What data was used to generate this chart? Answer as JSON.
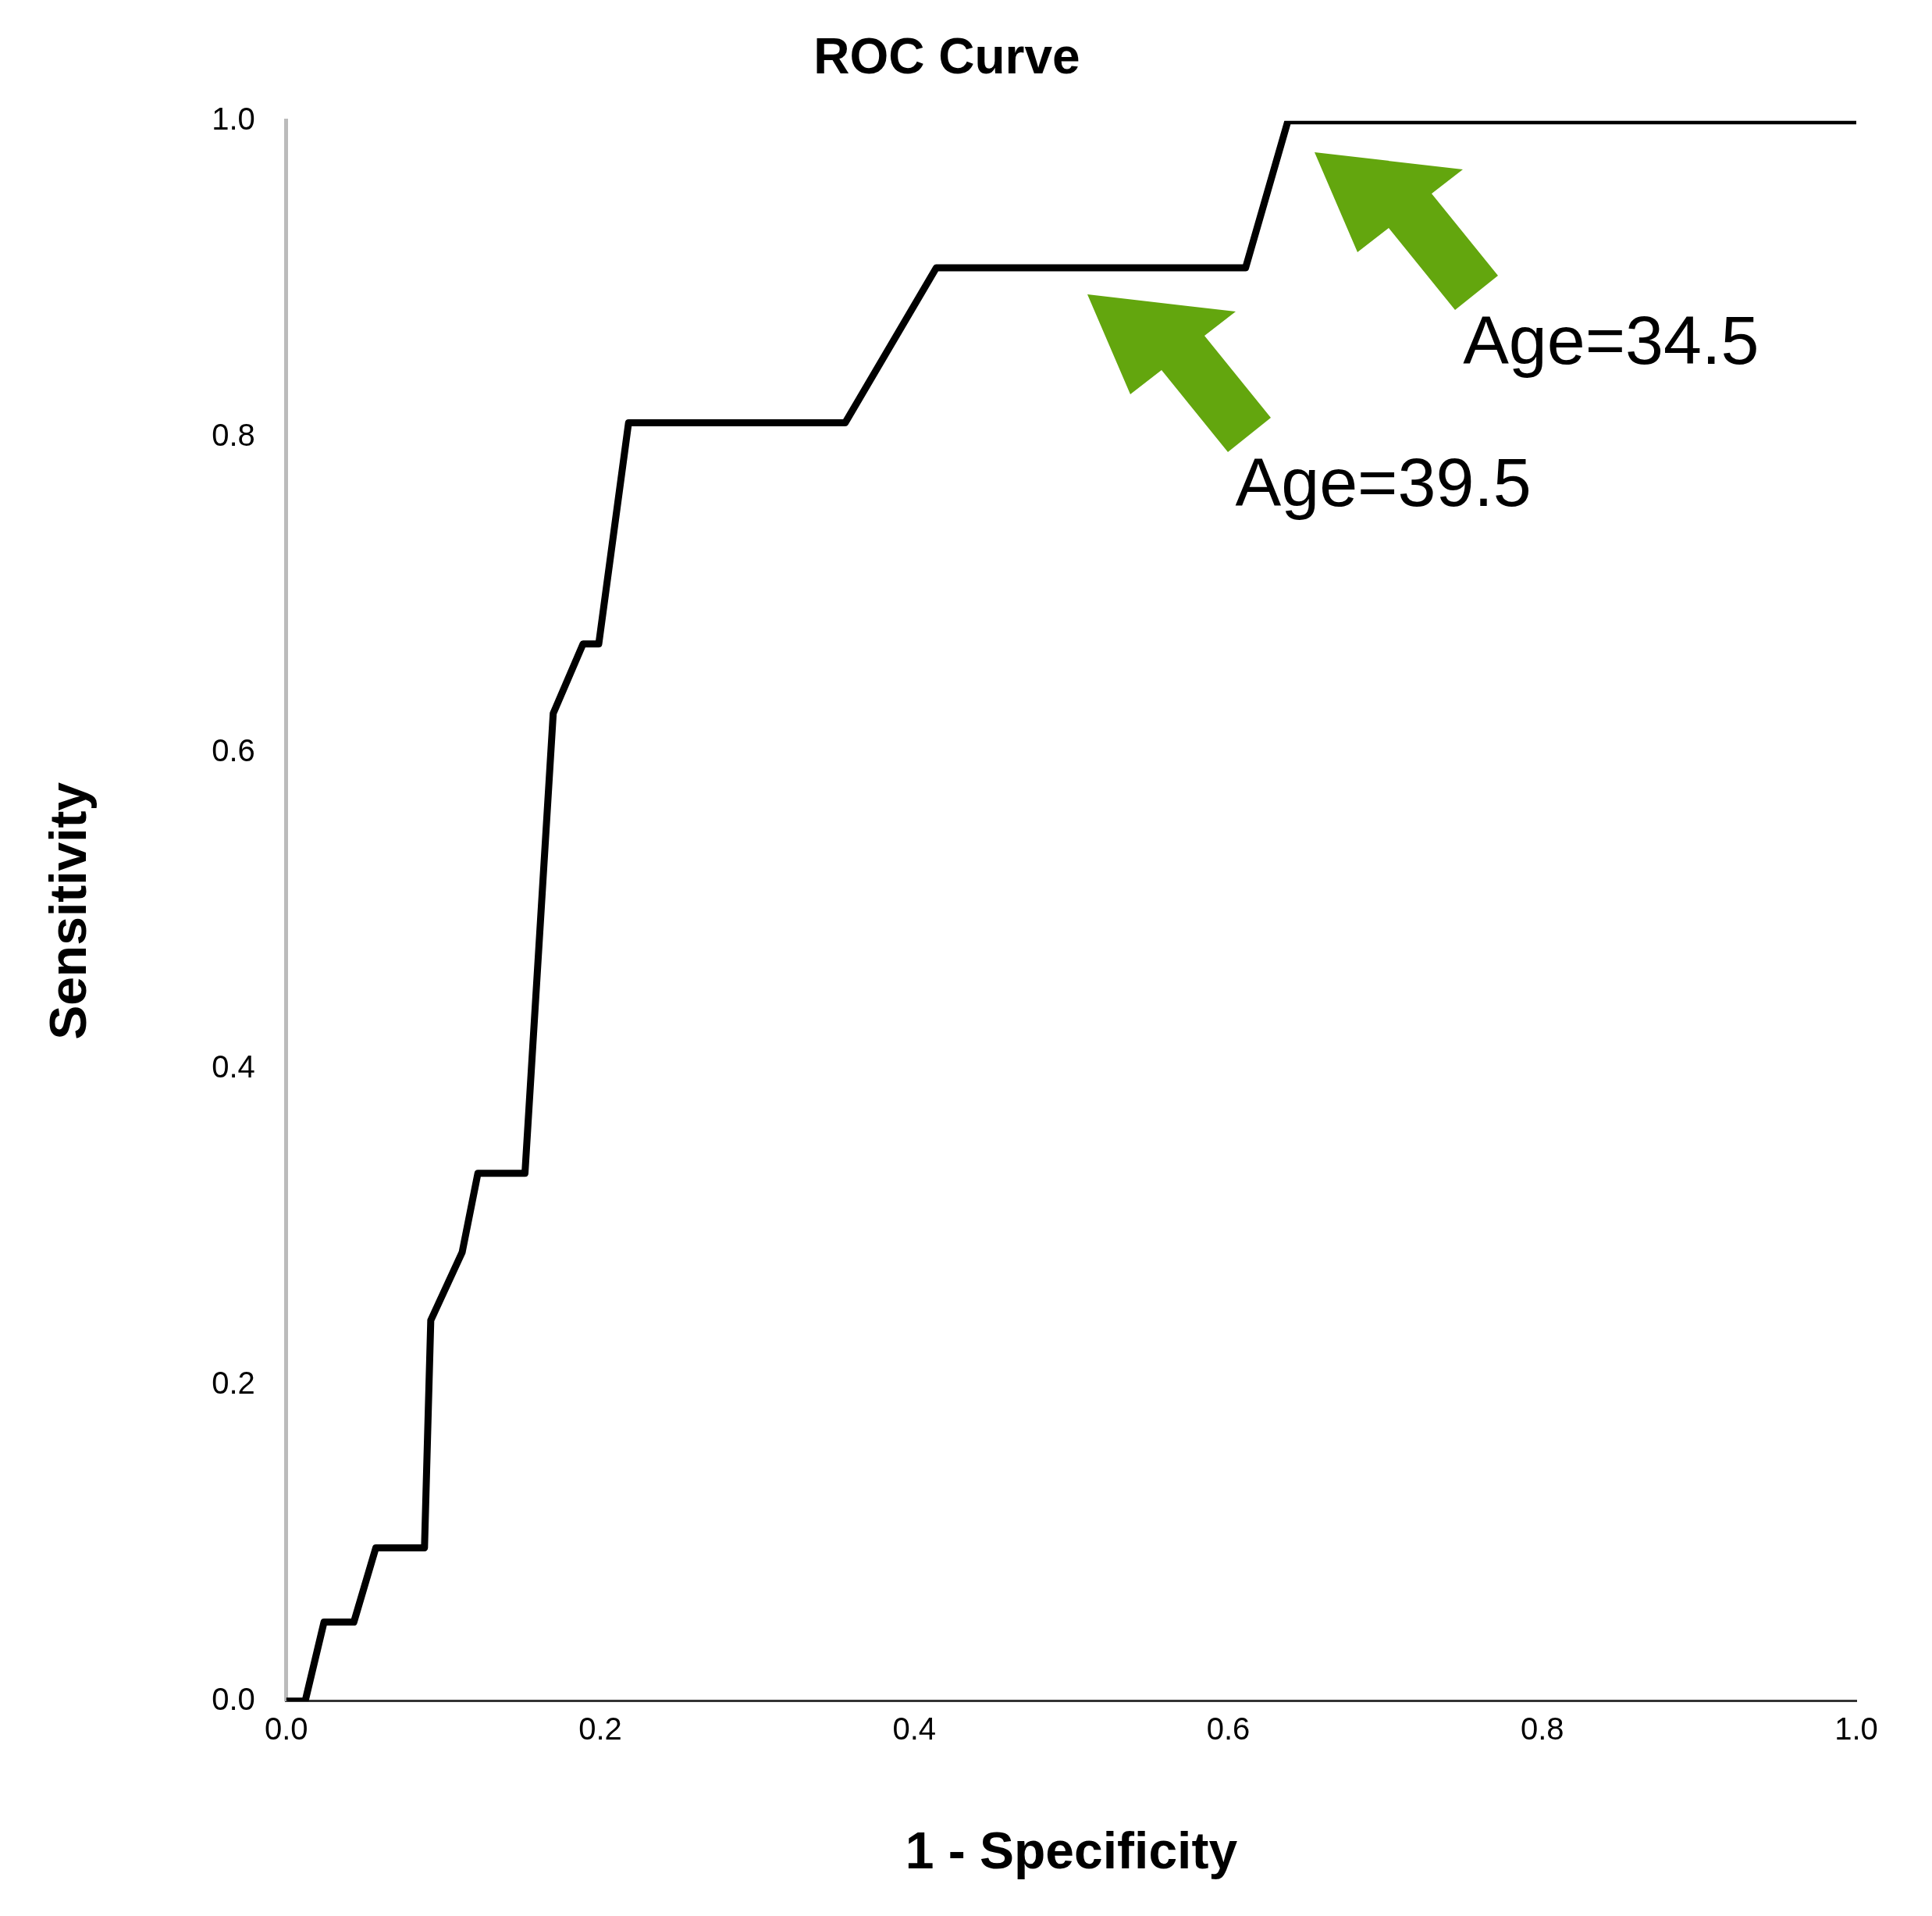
{
  "chart_data": {
    "type": "line",
    "title": "ROC Curve",
    "xlabel": "1 - Specificity",
    "ylabel": "Sensitivity",
    "x": [
      0,
      0.012,
      0.024,
      0.043,
      0.057,
      0.088,
      0.092,
      0.112,
      0.122,
      0.152,
      0.17,
      0.189,
      0.199,
      0.218,
      0.356,
      0.414,
      0.611,
      0.638,
      1.0
    ],
    "series": [
      {
        "color": "#000000",
        "values": [
          0,
          0,
          0.05,
          0.05,
          0.097,
          0.097,
          0.241,
          0.284,
          0.334,
          0.334,
          0.625,
          0.669,
          0.669,
          0.809,
          0.809,
          0.907,
          0.907,
          1.0,
          1.0
        ]
      }
    ],
    "xlim": [
      0,
      1
    ],
    "ylim": [
      0,
      1
    ],
    "xticks": [
      {
        "value": 0,
        "label": "0.0"
      },
      {
        "value": 0.2,
        "label": "0.2"
      },
      {
        "value": 0.4,
        "label": "0.4"
      },
      {
        "value": 0.6,
        "label": "0.6"
      },
      {
        "value": 0.8,
        "label": "0.8"
      },
      {
        "value": 1,
        "label": "1.0"
      }
    ],
    "yticks": [
      {
        "value": 0,
        "label": "0.0"
      },
      {
        "value": 0.2,
        "label": "0.2"
      },
      {
        "value": 0.4,
        "label": "0.4"
      },
      {
        "value": 0.6,
        "label": "0.6"
      },
      {
        "value": 0.8,
        "label": "0.8"
      },
      {
        "value": 1,
        "label": "1.0"
      }
    ],
    "annotations": [
      "Age=39.5",
      "Age=34.5"
    ],
    "grid": false,
    "legend": false
  }
}
